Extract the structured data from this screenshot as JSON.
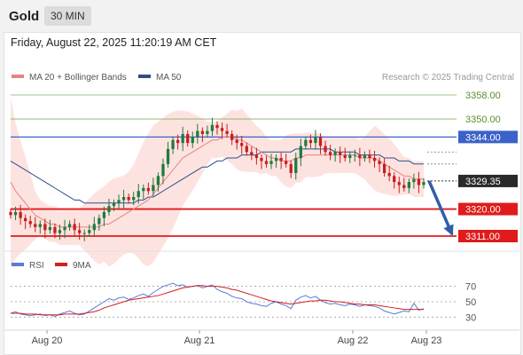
{
  "header": {
    "instrument": "Gold",
    "timeframe": "30 MIN"
  },
  "timestamp": "Friday, August 22, 2025 11:20:19 AM CET",
  "legend": {
    "ma20": "MA 20 + Bollinger Bands",
    "ma50": "MA 50",
    "credit": "Research © 2025 Trading Central"
  },
  "rsi_legend": {
    "rsi": "RSI",
    "ma9": "9MA"
  },
  "colors": {
    "up": "#1e7b3f",
    "down": "#c81e1e",
    "ma50": "#2b4f8a",
    "ma20": "#e8827e",
    "band": "#fde3e0",
    "resistance": "#3a62c8",
    "support": "#e01b1b",
    "target": "#7fb25a",
    "arrow": "#2f5fa7"
  },
  "chart_data": {
    "type": "candlestick",
    "ylim": [
      3300,
      3364
    ],
    "x_ticks": [
      "Aug 20",
      "Aug 21",
      "Aug 22",
      "Aug 23"
    ],
    "current_price": "3329.35",
    "levels": [
      {
        "value": "3358.00",
        "kind": "target"
      },
      {
        "value": "3350.00",
        "kind": "target"
      },
      {
        "value": "3344.00",
        "kind": "resistance"
      },
      {
        "value": "3320.00",
        "kind": "support"
      },
      {
        "value": "3311.00",
        "kind": "support"
      }
    ],
    "forecast": {
      "from": 3329.35,
      "to": 3311.0
    },
    "close": [
      3318,
      3319,
      3317,
      3316,
      3315,
      3314,
      3315,
      3313,
      3314,
      3312,
      3313,
      3314,
      3315,
      3313,
      3312,
      3312,
      3313,
      3315,
      3317,
      3319,
      3321,
      3322,
      3323,
      3324,
      3323,
      3324,
      3326,
      3327,
      3326,
      3328,
      3331,
      3335,
      3340,
      3343,
      3342,
      3345,
      3342,
      3344,
      3346,
      3345,
      3346,
      3348,
      3347,
      3346,
      3345,
      3343,
      3342,
      3341,
      3339,
      3338,
      3337,
      3336,
      3335,
      3336,
      3337,
      3336,
      3335,
      3332,
      3337,
      3341,
      3343,
      3342,
      3344,
      3341,
      3339,
      3338,
      3339,
      3338,
      3337,
      3338,
      3338,
      3337,
      3338,
      3337,
      3336,
      3335,
      3332,
      3331,
      3329,
      3328,
      3327,
      3329,
      3330,
      3328,
      3329
    ],
    "ma20": [
      3329,
      3326,
      3324,
      3322,
      3320,
      3318,
      3317,
      3316,
      3315,
      3315,
      3314,
      3314,
      3314,
      3314,
      3314,
      3314,
      3314,
      3314,
      3314,
      3315,
      3315,
      3316,
      3317,
      3318,
      3319,
      3320,
      3321,
      3322,
      3323,
      3325,
      3327,
      3329,
      3331,
      3333,
      3335,
      3337,
      3338,
      3339,
      3340,
      3341,
      3342,
      3343,
      3343,
      3344,
      3344,
      3344,
      3343,
      3343,
      3342,
      3341,
      3340,
      3339,
      3338,
      3337,
      3337,
      3336,
      3336,
      3336,
      3337,
      3337,
      3338,
      3338,
      3338,
      3338,
      3338,
      3338,
      3338,
      3338,
      3338,
      3338,
      3338,
      3337,
      3337,
      3337,
      3337,
      3336,
      3335,
      3334,
      3333,
      3332,
      3331,
      3331,
      3330,
      3330,
      3330
    ],
    "ma50": [
      3336,
      3335,
      3334,
      3333,
      3332,
      3331,
      3330,
      3329,
      3328,
      3327,
      3326,
      3325,
      3324,
      3323,
      3323,
      3322,
      3322,
      3322,
      3322,
      3322,
      3322,
      3322,
      3322,
      3322,
      3322,
      3322,
      3323,
      3323,
      3324,
      3324,
      3325,
      3326,
      3327,
      3328,
      3329,
      3330,
      3331,
      3332,
      3333,
      3334,
      3334,
      3335,
      3336,
      3336,
      3337,
      3337,
      3337,
      3338,
      3338,
      3338,
      3338,
      3339,
      3339,
      3339,
      3339,
      3339,
      3339,
      3339,
      3340,
      3340,
      3340,
      3340,
      3340,
      3340,
      3340,
      3340,
      3339,
      3339,
      3339,
      3339,
      3339,
      3338,
      3338,
      3338,
      3338,
      3338,
      3337,
      3337,
      3337,
      3336,
      3336,
      3336,
      3335,
      3335,
      3335
    ],
    "rsi": {
      "ylim": [
        20,
        80
      ],
      "ticks": [
        "70",
        "50",
        "30"
      ],
      "rsi": [
        35,
        37,
        34,
        33,
        32,
        33,
        34,
        32,
        33,
        31,
        34,
        36,
        38,
        35,
        33,
        34,
        38,
        42,
        46,
        50,
        54,
        52,
        55,
        56,
        53,
        55,
        58,
        60,
        57,
        62,
        66,
        70,
        72,
        74,
        71,
        72,
        69,
        70,
        71,
        68,
        70,
        72,
        66,
        63,
        61,
        57,
        55,
        54,
        50,
        48,
        47,
        45,
        44,
        48,
        50,
        47,
        45,
        41,
        52,
        56,
        58,
        55,
        57,
        52,
        49,
        47,
        48,
        46,
        45,
        47,
        46,
        44,
        46,
        45,
        44,
        42,
        38,
        36,
        34,
        36,
        38,
        37,
        48,
        39,
        41
      ],
      "ma9": [
        35,
        35,
        35,
        34,
        34,
        34,
        33,
        33,
        33,
        33,
        33,
        34,
        34,
        34,
        34,
        35,
        36,
        37,
        39,
        42,
        44,
        46,
        48,
        50,
        52,
        53,
        54,
        55,
        56,
        57,
        58,
        60,
        62,
        64,
        66,
        68,
        69,
        70,
        71,
        71,
        70,
        70,
        70,
        69,
        68,
        66,
        65,
        63,
        61,
        59,
        57,
        55,
        53,
        51,
        50,
        49,
        48,
        47,
        48,
        49,
        50,
        51,
        51,
        52,
        52,
        51,
        50,
        50,
        49,
        48,
        47,
        47,
        46,
        46,
        46,
        45,
        44,
        43,
        42,
        41,
        40,
        40,
        40,
        40,
        40
      ]
    }
  }
}
